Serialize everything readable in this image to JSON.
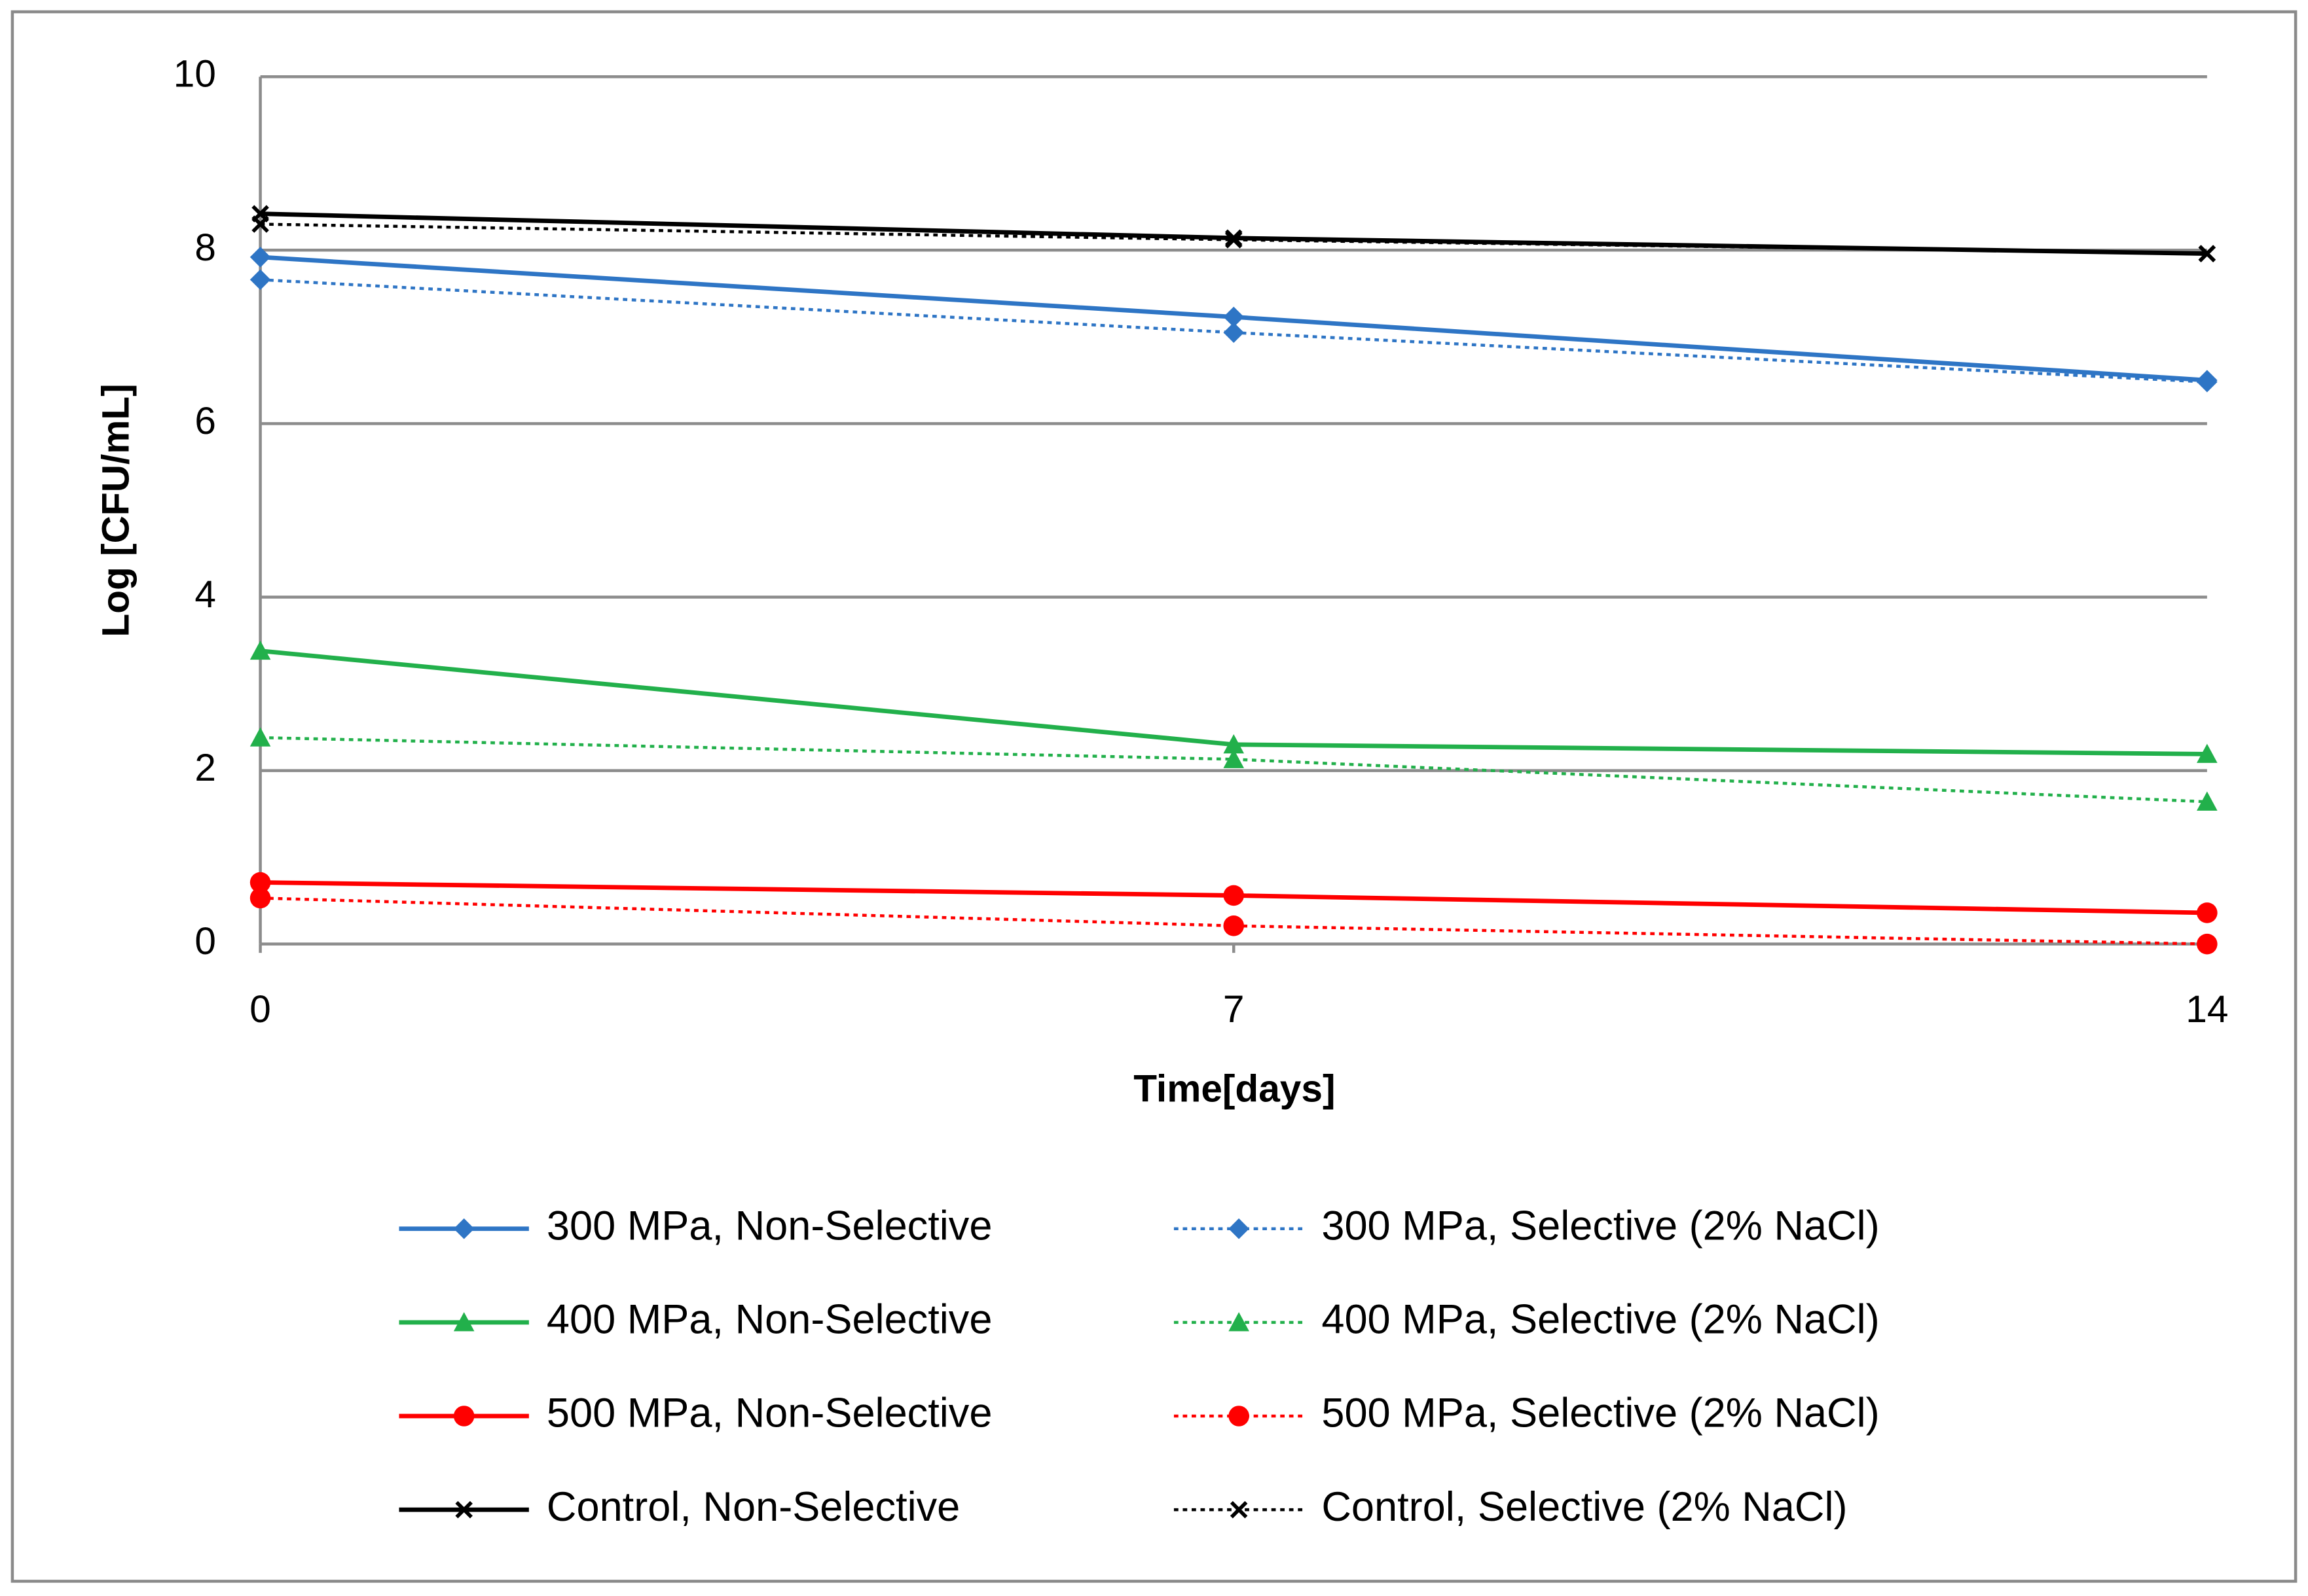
{
  "chart_data": {
    "type": "line",
    "x_label": "Time[days]",
    "y_label": "Log [CFU/mL]",
    "x": [
      0,
      7,
      14
    ],
    "xlim": [
      0,
      14
    ],
    "xticks": [
      0,
      7,
      14
    ],
    "ylim": [
      0,
      10
    ],
    "yticks": [
      0,
      2,
      4,
      6,
      8,
      10
    ],
    "grid": true,
    "legend": "bottom",
    "series": [
      {
        "name": "300 MPa, Non-Selective",
        "color": "#2e75c5",
        "line": "solid",
        "marker": "diamond",
        "values": [
          7.92,
          7.23,
          6.5
        ]
      },
      {
        "name": "300 MPa, Selective (2% NaCl)",
        "color": "#2e75c5",
        "line": "dotted",
        "marker": "diamond",
        "values": [
          7.66,
          7.05,
          6.48
        ]
      },
      {
        "name": "400 MPa, Non-Selective",
        "color": "#22b04b",
        "line": "solid",
        "marker": "triangle",
        "values": [
          3.38,
          2.3,
          2.19
        ]
      },
      {
        "name": "400 MPa, Selective (2% NaCl)",
        "color": "#22b04b",
        "line": "dotted",
        "marker": "triangle",
        "values": [
          2.38,
          2.13,
          1.64
        ]
      },
      {
        "name": "500 MPa, Non-Selective",
        "color": "#ff0000",
        "line": "solid",
        "marker": "circle",
        "values": [
          0.71,
          0.56,
          0.36
        ]
      },
      {
        "name": "500 MPa, Selective (2% NaCl)",
        "color": "#ff0000",
        "line": "dotted",
        "marker": "circle",
        "values": [
          0.53,
          0.21,
          0.0
        ]
      },
      {
        "name": "Control, Non-Selective",
        "color": "#000000",
        "line": "solid",
        "marker": "x",
        "values": [
          8.42,
          8.14,
          7.96
        ]
      },
      {
        "name": "Control, Selective (2% NaCl)",
        "color": "#000000",
        "line": "dotted",
        "marker": "x",
        "values": [
          8.3,
          8.12,
          7.96
        ]
      }
    ]
  }
}
